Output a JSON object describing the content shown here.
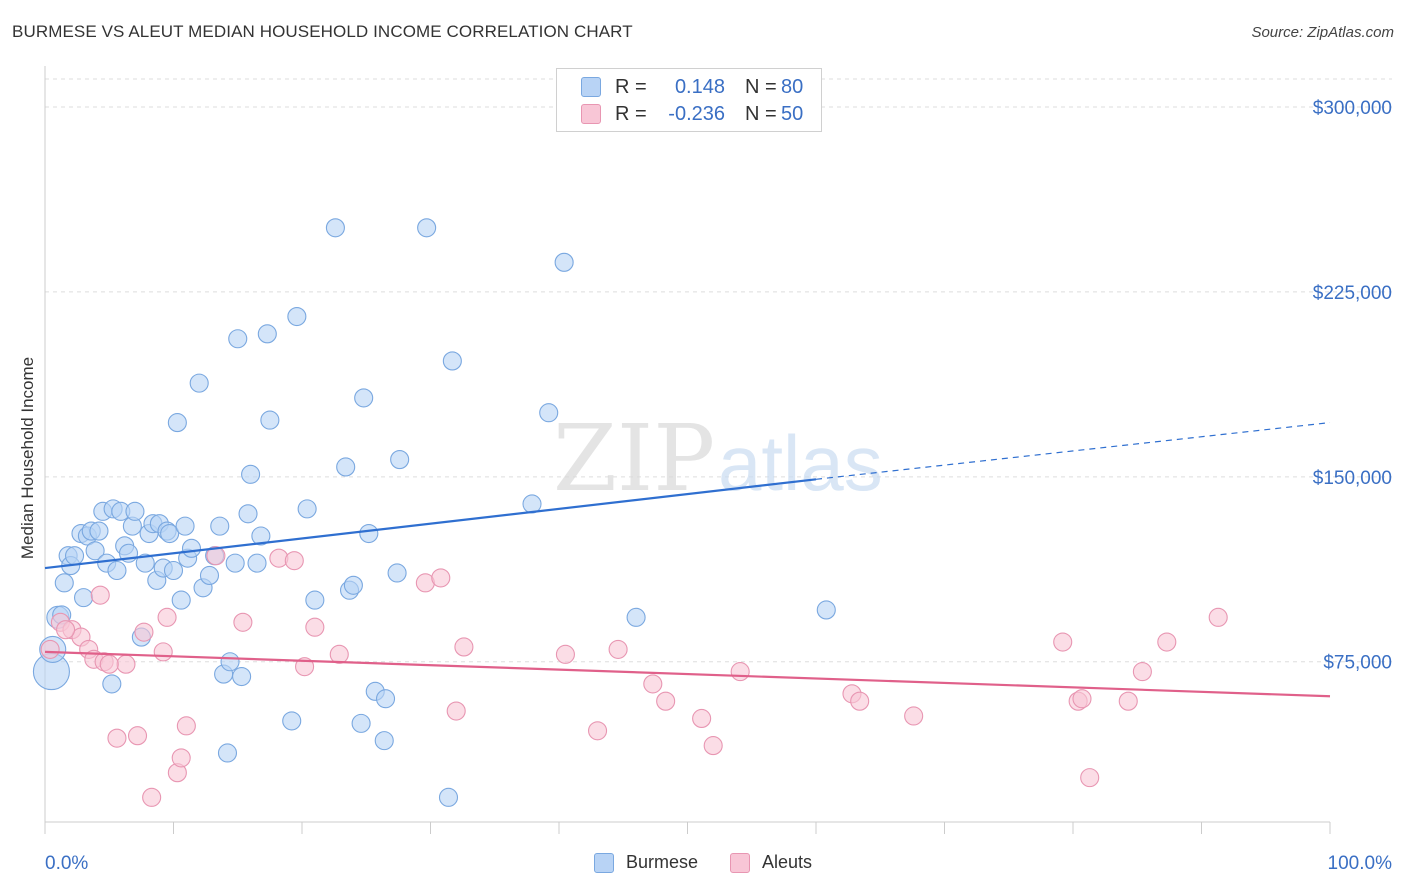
{
  "title": "BURMESE VS ALEUT MEDIAN HOUSEHOLD INCOME CORRELATION CHART",
  "source": "Source: ZipAtlas.com",
  "watermark": {
    "zip": "ZIP",
    "atlas": "atlas"
  },
  "legend": {
    "rows": [
      {
        "r_label": "R =",
        "r_value": "0.148",
        "n_label": "N =",
        "n_value": "80",
        "fill": "#b8d3f5",
        "stroke": "#7aa8e0"
      },
      {
        "r_label": "R =",
        "r_value": "-0.236",
        "n_label": "N =",
        "n_value": "50",
        "fill": "#f8c6d6",
        "stroke": "#e896b2"
      }
    ]
  },
  "bottom_legend": [
    "Burmese",
    "Aleuts"
  ],
  "chart_data": {
    "type": "scatter",
    "xlabel": "",
    "ylabel": "Median Household Income",
    "xlim": [
      0,
      100
    ],
    "ylim": [
      10000,
      315000
    ],
    "x_tick_labels": [
      "0.0%",
      "100.0%"
    ],
    "y_ticks": [
      75000,
      150000,
      225000,
      300000
    ],
    "y_tick_labels": [
      "$75,000",
      "$150,000",
      "$225,000",
      "$300,000"
    ],
    "grid": true,
    "legend_position": "top-center",
    "colors": {
      "burmese_fill": "#b8d3f5",
      "burmese_stroke": "#7aa8e0",
      "burmese_line": "#2f6fd0",
      "aleuts_fill": "#f8c6d6",
      "aleuts_stroke": "#e896b2",
      "aleuts_line": "#e0608a",
      "axis_label": "#3a6fc4"
    },
    "series": [
      {
        "name": "Burmese",
        "trend": {
          "x0": 0,
          "y0": 113000,
          "x1": 60,
          "y1": 149000,
          "x_dash_end": 100,
          "y_dash_end": 172000
        },
        "points": [
          [
            0.5,
            71000
          ],
          [
            0.6,
            80000
          ],
          [
            1.0,
            93000
          ],
          [
            1.3,
            94000
          ],
          [
            1.5,
            107000
          ],
          [
            1.8,
            118000
          ],
          [
            2.0,
            114000
          ],
          [
            2.3,
            118000
          ],
          [
            2.8,
            127000
          ],
          [
            3.0,
            101000
          ],
          [
            3.3,
            126000
          ],
          [
            3.6,
            128000
          ],
          [
            3.9,
            120000
          ],
          [
            4.2,
            128000
          ],
          [
            4.5,
            136000
          ],
          [
            4.8,
            115000
          ],
          [
            5.3,
            137000
          ],
          [
            5.6,
            112000
          ],
          [
            5.9,
            136000
          ],
          [
            6.2,
            122000
          ],
          [
            6.5,
            119000
          ],
          [
            6.8,
            130000
          ],
          [
            7.0,
            136000
          ],
          [
            7.5,
            85000
          ],
          [
            7.8,
            115000
          ],
          [
            8.1,
            127000
          ],
          [
            8.4,
            131000
          ],
          [
            8.7,
            108000
          ],
          [
            8.9,
            131000
          ],
          [
            9.2,
            113000
          ],
          [
            9.5,
            128000
          ],
          [
            9.7,
            127000
          ],
          [
            10.0,
            112000
          ],
          [
            10.3,
            172000
          ],
          [
            10.6,
            100000
          ],
          [
            10.9,
            130000
          ],
          [
            11.1,
            117000
          ],
          [
            11.4,
            121000
          ],
          [
            12.0,
            188000
          ],
          [
            12.3,
            105000
          ],
          [
            12.8,
            110000
          ],
          [
            13.2,
            118000
          ],
          [
            13.6,
            130000
          ],
          [
            13.9,
            70000
          ],
          [
            14.2,
            38000
          ],
          [
            14.4,
            75000
          ],
          [
            14.8,
            115000
          ],
          [
            15.0,
            206000
          ],
          [
            15.3,
            69000
          ],
          [
            15.8,
            135000
          ],
          [
            16.0,
            151000
          ],
          [
            16.5,
            115000
          ],
          [
            16.8,
            126000
          ],
          [
            17.3,
            208000
          ],
          [
            17.5,
            173000
          ],
          [
            19.2,
            51000
          ],
          [
            19.6,
            215000
          ],
          [
            20.4,
            137000
          ],
          [
            21.0,
            100000
          ],
          [
            22.6,
            251000
          ],
          [
            23.4,
            154000
          ],
          [
            23.7,
            104000
          ],
          [
            24.0,
            106000
          ],
          [
            24.6,
            50000
          ],
          [
            24.8,
            182000
          ],
          [
            25.2,
            127000
          ],
          [
            25.7,
            63000
          ],
          [
            26.4,
            43000
          ],
          [
            26.5,
            60000
          ],
          [
            27.4,
            111000
          ],
          [
            27.6,
            157000
          ],
          [
            29.7,
            251000
          ],
          [
            31.4,
            20000
          ],
          [
            31.7,
            197000
          ],
          [
            37.9,
            139000
          ],
          [
            39.2,
            176000
          ],
          [
            40.4,
            237000
          ],
          [
            46.0,
            93000
          ],
          [
            60.8,
            96000
          ],
          [
            5.2,
            66000
          ]
        ]
      },
      {
        "name": "Aleuts",
        "trend": {
          "x0": 0,
          "y0": 79000,
          "x1": 100,
          "y1": 61000
        },
        "points": [
          [
            0.4,
            80000
          ],
          [
            1.2,
            91000
          ],
          [
            2.1,
            88000
          ],
          [
            2.8,
            85000
          ],
          [
            3.4,
            80000
          ],
          [
            3.8,
            76000
          ],
          [
            4.3,
            102000
          ],
          [
            4.6,
            75000
          ],
          [
            5.6,
            44000
          ],
          [
            6.3,
            74000
          ],
          [
            7.2,
            45000
          ],
          [
            7.7,
            87000
          ],
          [
            8.3,
            20000
          ],
          [
            9.2,
            79000
          ],
          [
            9.5,
            93000
          ],
          [
            10.3,
            30000
          ],
          [
            10.6,
            36000
          ],
          [
            11.0,
            49000
          ],
          [
            13.3,
            118000
          ],
          [
            15.4,
            91000
          ],
          [
            18.2,
            117000
          ],
          [
            19.4,
            116000
          ],
          [
            20.2,
            73000
          ],
          [
            21.0,
            89000
          ],
          [
            22.9,
            78000
          ],
          [
            29.6,
            107000
          ],
          [
            30.8,
            109000
          ],
          [
            32.0,
            55000
          ],
          [
            32.6,
            81000
          ],
          [
            40.5,
            78000
          ],
          [
            43.0,
            47000
          ],
          [
            44.6,
            80000
          ],
          [
            47.3,
            66000
          ],
          [
            48.3,
            59000
          ],
          [
            51.1,
            52000
          ],
          [
            52.0,
            41000
          ],
          [
            54.1,
            71000
          ],
          [
            62.8,
            62000
          ],
          [
            63.4,
            59000
          ],
          [
            67.6,
            53000
          ],
          [
            79.2,
            83000
          ],
          [
            80.4,
            59000
          ],
          [
            80.7,
            60000
          ],
          [
            81.3,
            28000
          ],
          [
            84.3,
            59000
          ],
          [
            85.4,
            71000
          ],
          [
            87.3,
            83000
          ],
          [
            91.3,
            93000
          ],
          [
            1.6,
            88000
          ],
          [
            5.0,
            74000
          ]
        ]
      }
    ]
  }
}
